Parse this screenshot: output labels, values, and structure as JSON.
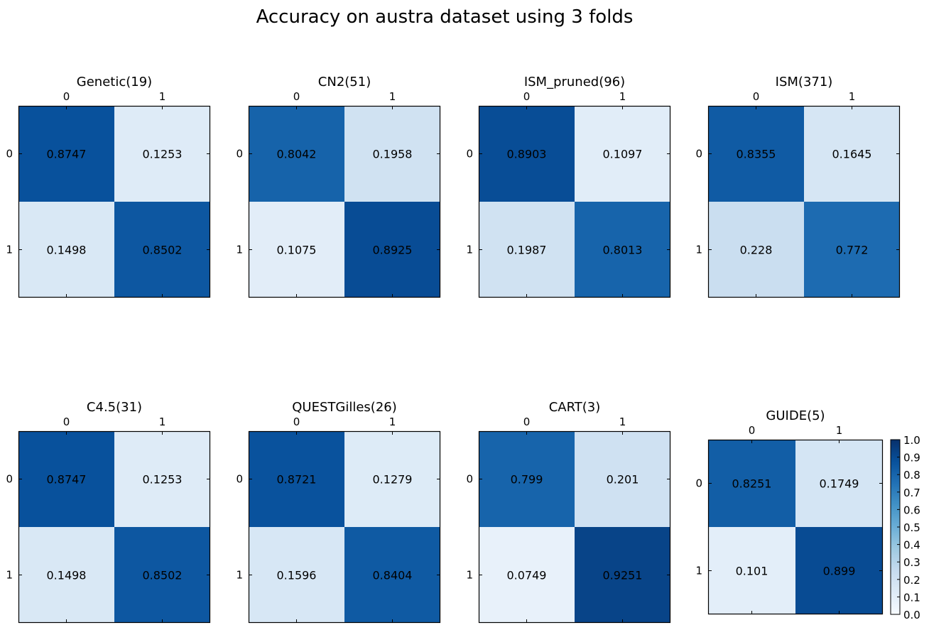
{
  "chart_data": {
    "type": "heatmap",
    "title": "Accuracy on austra dataset using 3 folds",
    "colormap": "Blues",
    "vmin": 0.0,
    "vmax": 1.0,
    "row_ticks": [
      "0",
      "1"
    ],
    "col_ticks": [
      "0",
      "1"
    ],
    "colorbar_ticks": [
      "0.0",
      "0.1",
      "0.2",
      "0.3",
      "0.4",
      "0.5",
      "0.6",
      "0.7",
      "0.8",
      "0.9",
      "1.0"
    ],
    "panels": [
      {
        "title": "Genetic(19)",
        "matrix": [
          [
            0.8747,
            0.1253
          ],
          [
            0.1498,
            0.8502
          ]
        ],
        "labels": [
          [
            "0.8747",
            "0.1253"
          ],
          [
            "0.1498",
            "0.8502"
          ]
        ]
      },
      {
        "title": "CN2(51)",
        "matrix": [
          [
            0.8042,
            0.1958
          ],
          [
            0.1075,
            0.8925
          ]
        ],
        "labels": [
          [
            "0.8042",
            "0.1958"
          ],
          [
            "0.1075",
            "0.8925"
          ]
        ]
      },
      {
        "title": "ISM_pruned(96)",
        "matrix": [
          [
            0.8903,
            0.1097
          ],
          [
            0.1987,
            0.8013
          ]
        ],
        "labels": [
          [
            "0.8903",
            "0.1097"
          ],
          [
            "0.1987",
            "0.8013"
          ]
        ]
      },
      {
        "title": "ISM(371)",
        "matrix": [
          [
            0.8355,
            0.1645
          ],
          [
            0.228,
            0.772
          ]
        ],
        "labels": [
          [
            "0.8355",
            "0.1645"
          ],
          [
            "0.228",
            "0.772"
          ]
        ]
      },
      {
        "title": "C4.5(31)",
        "matrix": [
          [
            0.8747,
            0.1253
          ],
          [
            0.1498,
            0.8502
          ]
        ],
        "labels": [
          [
            "0.8747",
            "0.1253"
          ],
          [
            "0.1498",
            "0.8502"
          ]
        ]
      },
      {
        "title": "QUESTGilles(26)",
        "matrix": [
          [
            0.8721,
            0.1279
          ],
          [
            0.1596,
            0.8404
          ]
        ],
        "labels": [
          [
            "0.8721",
            "0.1279"
          ],
          [
            "0.1596",
            "0.8404"
          ]
        ]
      },
      {
        "title": "CART(3)",
        "matrix": [
          [
            0.799,
            0.201
          ],
          [
            0.0749,
            0.9251
          ]
        ],
        "labels": [
          [
            "0.799",
            "0.201"
          ],
          [
            "0.0749",
            "0.9251"
          ]
        ]
      },
      {
        "title": "GUIDE(5)",
        "matrix": [
          [
            0.8251,
            0.1749
          ],
          [
            0.101,
            0.899
          ]
        ],
        "labels": [
          [
            "0.8251",
            "0.1749"
          ],
          [
            "0.101",
            "0.899"
          ]
        ]
      }
    ]
  }
}
